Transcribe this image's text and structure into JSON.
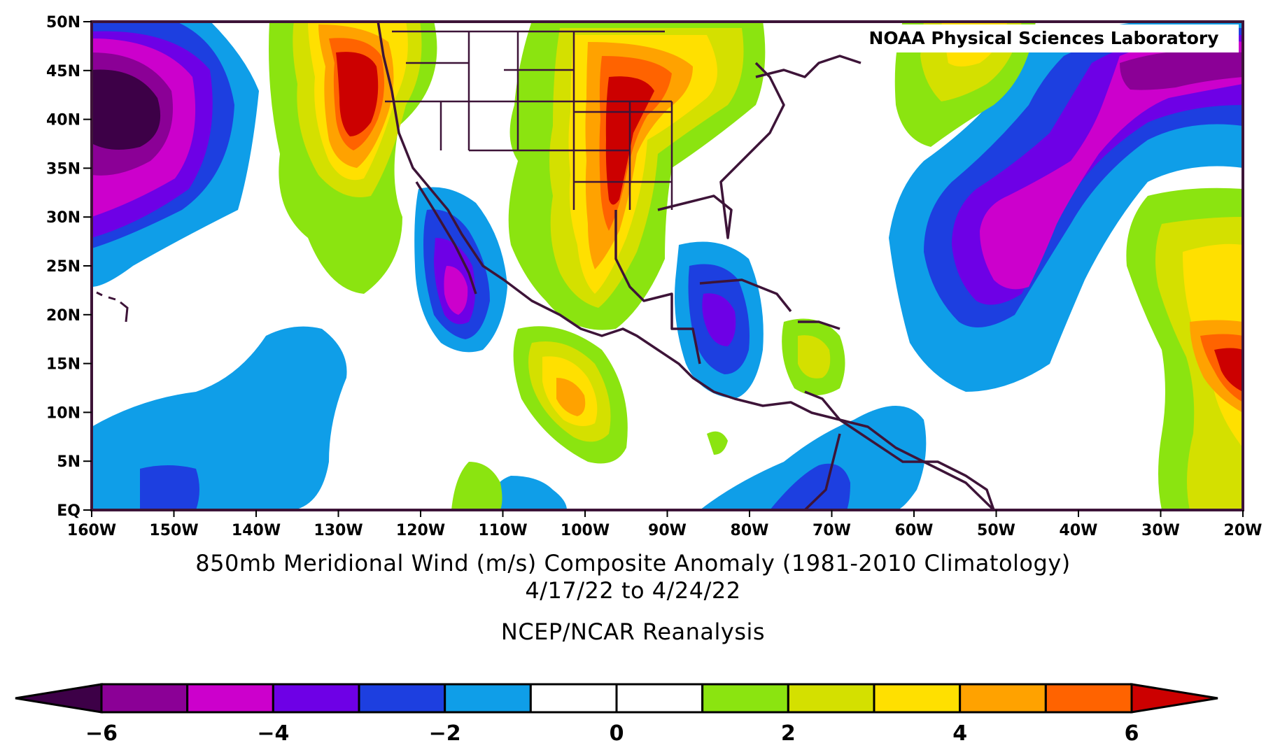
{
  "map": {
    "credit": "NOAA Physical Sciences Laboratory",
    "title_line1": "850mb Meridional Wind (m/s) Composite Anomaly (1981-2010 Climatology)",
    "title_line2": "4/17/22  to 4/24/22",
    "source": "NCEP/NCAR Reanalysis",
    "lat_labels": [
      "50N",
      "45N",
      "40N",
      "35N",
      "30N",
      "25N",
      "20N",
      "15N",
      "10N",
      "5N",
      "EQ"
    ],
    "lon_labels": [
      "160W",
      "150W",
      "140W",
      "130W",
      "120W",
      "110W",
      "100W",
      "90W",
      "80W",
      "70W",
      "60W",
      "50W",
      "40W",
      "30W",
      "20W"
    ],
    "coastline_color": "#3d1438"
  },
  "colorbar": {
    "colors": [
      "#3d0047",
      "#8b0096",
      "#cc00cc",
      "#6e00e6",
      "#1d3fe0",
      "#0f9ee8",
      "#ffffff",
      "#ffffff",
      "#8be410",
      "#d4e000",
      "#ffe000",
      "#ffa200",
      "#ff6300",
      "#cc0000"
    ],
    "tick_labels": [
      "-6",
      "-4",
      "-2",
      "0",
      "2",
      "4",
      "6"
    ],
    "ticks": [
      -6,
      -4,
      -2,
      0,
      2,
      4,
      6
    ],
    "range": [
      -7,
      7
    ]
  },
  "anomaly_features": [
    {
      "name": "pacific-neg-160w",
      "lon": -155,
      "lat": 41,
      "value": -6
    },
    {
      "name": "west-coast-pos",
      "lon": -128,
      "lat": 41,
      "value": 5
    },
    {
      "name": "plains-pos",
      "lon": -96,
      "lat": 36,
      "value": 5
    },
    {
      "name": "baja-neg",
      "lon": -115,
      "lat": 22,
      "value": -4
    },
    {
      "name": "caribbean-neg",
      "lon": -84,
      "lat": 20,
      "value": -3
    },
    {
      "name": "east-pacific-pos",
      "lon": -102,
      "lat": 12,
      "value": 3
    },
    {
      "name": "atlantic-neg",
      "lon": -52,
      "lat": 28,
      "value": -4
    },
    {
      "name": "ne-atlantic-neg",
      "lon": -30,
      "lat": 44,
      "value": -5
    },
    {
      "name": "east-atlantic-pos",
      "lon": -22,
      "lat": 13,
      "value": 5
    }
  ]
}
